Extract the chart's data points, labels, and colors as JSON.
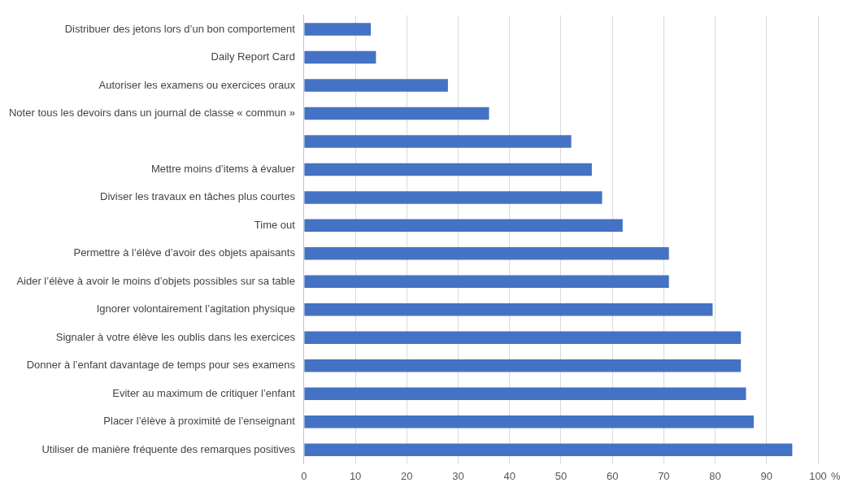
{
  "chart_data": {
    "type": "bar",
    "orientation": "horizontal",
    "xlabel": "%",
    "categories": [
      "Distribuer des jetons lors d’un bon comportement",
      "Daily Report Card",
      "Autoriser les examens ou exercices oraux",
      "Noter tous les devoirs dans un journal de classe « commun »",
      null,
      "Mettre moins d’items à évaluer",
      "Diviser les travaux en tâches plus courtes",
      "Time out",
      "Permettre à l’élève d’avoir des objets apaisants",
      "Aider l’élève à avoir le moins d’objets possibles sur sa table",
      "Ignorer volontairement l’agitation physique",
      "Signaler à votre élève les oublis dans les exercices",
      "Donner à l’enfant davantage de temps pour ses examens",
      "Eviter au maximum de critiquer l’enfant",
      "Placer l’élève à proximité de l’enseignant",
      "Utiliser de manière fréquente des remarques positives"
    ],
    "values": [
      13,
      14,
      28,
      36,
      52,
      56,
      58,
      62,
      71,
      71,
      79.5,
      85,
      85,
      86,
      87.5,
      95
    ],
    "color": "#4472c4",
    "xlim": [
      0,
      100
    ],
    "xticks": [
      0,
      10,
      20,
      30,
      40,
      50,
      60,
      70,
      80,
      90,
      100
    ],
    "grid": "x",
    "legend": false
  }
}
